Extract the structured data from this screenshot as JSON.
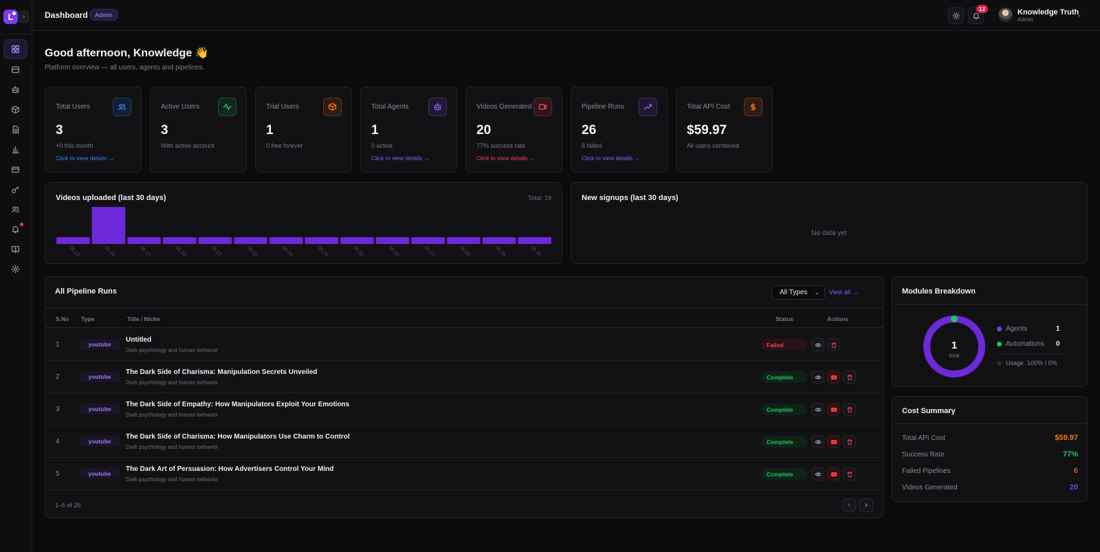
{
  "header": {
    "title": "Dashboard",
    "role_badge": "Admin",
    "notifications_count": "12",
    "user_name": "Knowledge Truth",
    "user_role": "Admin"
  },
  "sidebar": {
    "logo_letter": "L",
    "items": [
      {
        "icon": "dashboard-icon",
        "active": true
      },
      {
        "icon": "card-icon"
      },
      {
        "icon": "bot-icon"
      },
      {
        "icon": "box-icon"
      },
      {
        "icon": "document-icon"
      },
      {
        "icon": "bar-chart-icon"
      },
      {
        "icon": "billing-icon"
      },
      {
        "icon": "key-icon"
      },
      {
        "icon": "users-icon"
      },
      {
        "icon": "bell-icon",
        "has_dot": true
      },
      {
        "icon": "book-icon"
      },
      {
        "icon": "gear-icon"
      }
    ]
  },
  "greeting": {
    "title": "Good afternoon, Knowledge 👋",
    "subtitle": "Platform overview — all users, agents and pipelines."
  },
  "stats": [
    {
      "label": "Total Users",
      "value": "3",
      "sub": "+0 this month",
      "link": "Click to view details →",
      "icon": "users-icon",
      "color": "#3b82f6"
    },
    {
      "label": "Active Users",
      "value": "3",
      "sub": "With active account",
      "link": "",
      "icon": "activity-icon",
      "color": "#22c55e"
    },
    {
      "label": "Trial Users",
      "value": "1",
      "sub": "0 free forever",
      "link": "",
      "icon": "box-icon",
      "color": "#f97316"
    },
    {
      "label": "Total Agents",
      "value": "1",
      "sub": "0 active",
      "link": "Click to view details →",
      "icon": "bot-icon",
      "color": "#8b5cf6"
    },
    {
      "label": "Videos Generated",
      "value": "20",
      "sub": "77% success rate",
      "link": "Click to view details →",
      "icon": "video-icon",
      "color": "#f43f5e"
    },
    {
      "label": "Pipeline Runs",
      "value": "26",
      "sub": "6 failed",
      "link": "Click to view details →",
      "icon": "trend-icon",
      "color": "#8b5cf6"
    },
    {
      "label": "Total API Cost",
      "value": "$59.97",
      "sub": "All users combined",
      "link": "",
      "icon": "dollar-icon",
      "color": "#f97316"
    }
  ],
  "videos_chart": {
    "title": "Videos uploaded (last 30 days)",
    "total_label": "Total: 19"
  },
  "signups_chart": {
    "title": "New signups (last 30 days)",
    "empty_text": "No data yet"
  },
  "chart_data": {
    "type": "bar",
    "categories": [
      "05-13",
      "05-16",
      "05-17",
      "05-20",
      "05-21",
      "05-22",
      "05-23",
      "05-24",
      "05-25",
      "05-26",
      "05-27",
      "05-28",
      "05-29",
      "05-30"
    ],
    "values": [
      1,
      6,
      1,
      1,
      1,
      1,
      1,
      1,
      1,
      1,
      1,
      1,
      1,
      1
    ],
    "color": "#6d28d9"
  },
  "pipeline": {
    "title": "All Pipeline Runs",
    "filter_value": "All Types",
    "view_all": "View all →",
    "columns": {
      "no": "S.No",
      "type": "Type",
      "title": "Title / Niche",
      "status": "Status",
      "actions": "Actions"
    },
    "rows": [
      {
        "no": "1",
        "type": "youtube",
        "title": "Untitled",
        "niche": "Dark psychology and human behavior",
        "status": "Failed",
        "state": "failed"
      },
      {
        "no": "2",
        "type": "youtube",
        "title": "The Dark Side of Charisma: Manipulation Secrets Unveiled",
        "niche": "Dark psychology and human behavior",
        "status": "Complete",
        "state": "complete"
      },
      {
        "no": "3",
        "type": "youtube",
        "title": "The Dark Side of Empathy: How Manipulators Exploit Your Emotions",
        "niche": "Dark psychology and human behavior",
        "status": "Complete",
        "state": "complete"
      },
      {
        "no": "4",
        "type": "youtube",
        "title": "The Dark Side of Charisma: How Manipulators Use Charm to Control",
        "niche": "Dark psychology and human behavior",
        "status": "Complete",
        "state": "complete"
      },
      {
        "no": "5",
        "type": "youtube",
        "title": "The Dark Art of Persuasion: How Advertisers Control Your Mind",
        "niche": "Dark psychology and human behavior",
        "status": "Complete",
        "state": "complete"
      }
    ],
    "pager_text": "1–5 of 26"
  },
  "modules": {
    "title": "Modules Breakdown",
    "center_value": "1",
    "center_label": "total",
    "legend": [
      {
        "label": "Agents",
        "value": "1",
        "color": "#7c3aed"
      },
      {
        "label": "Automations",
        "value": "0",
        "color": "#22c55e"
      },
      {
        "label": "Usage",
        "value": "100% / 0%",
        "color": "#2a2a30"
      }
    ]
  },
  "cost_summary": {
    "title": "Cost Summary",
    "rows": [
      {
        "label": "Total API Cost",
        "value": "$59.97",
        "color": "#f97316"
      },
      {
        "label": "Success Rate",
        "value": "77%",
        "color": "#22c55e"
      },
      {
        "label": "Failed Pipelines",
        "value": "6",
        "color": "#ef4444"
      },
      {
        "label": "Videos Generated",
        "value": "20",
        "color": "#7c3aed"
      }
    ]
  }
}
